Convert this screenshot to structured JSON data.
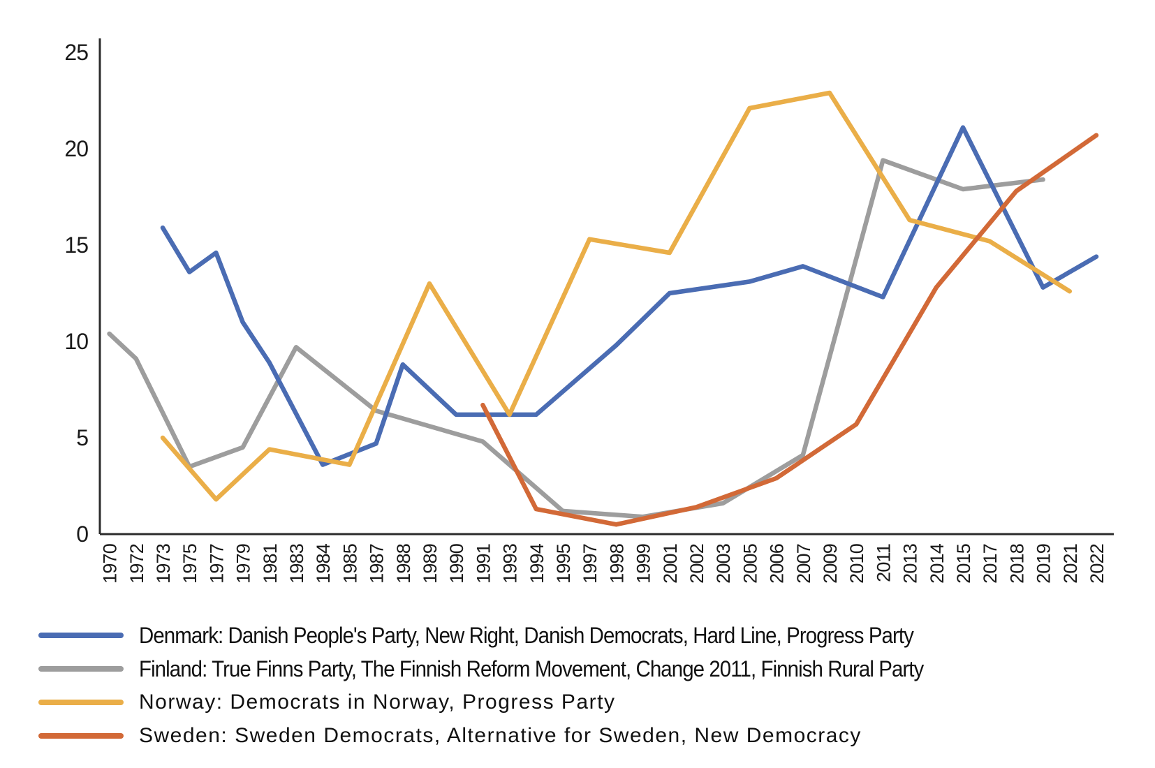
{
  "chart_data": {
    "type": "line",
    "title": "",
    "xlabel": "",
    "ylabel": "",
    "ylim": [
      0,
      25
    ],
    "yticks": [
      0,
      5,
      10,
      15,
      20,
      25
    ],
    "grid": false,
    "legend_position": "bottom",
    "categories": [
      "1970",
      "1972",
      "1973",
      "1975",
      "1977",
      "1979",
      "1981",
      "1983",
      "1984",
      "1985",
      "1987",
      "1988",
      "1989",
      "1990",
      "1991",
      "1993",
      "1994",
      "1995",
      "1997",
      "1998",
      "1999",
      "2001",
      "2002",
      "2003",
      "2005",
      "2006",
      "2007",
      "2009",
      "2010",
      "2011",
      "2013",
      "2014",
      "2015",
      "2017",
      "2018",
      "2019",
      "2021",
      "2022"
    ],
    "series": [
      {
        "name": "Finland",
        "legend": "Finland: True Finns Party, The Finnish Reform Movement, Change 2011, Finnish Rural Party",
        "color": "#9D9D9D",
        "points": [
          [
            1970,
            10.4
          ],
          [
            1972,
            9.1
          ],
          [
            1975,
            3.5
          ],
          [
            1979,
            4.5
          ],
          [
            1983,
            9.7
          ],
          [
            1987,
            6.4
          ],
          [
            1991,
            4.8
          ],
          [
            1995,
            1.2
          ],
          [
            1999,
            0.9
          ],
          [
            2003,
            1.6
          ],
          [
            2007,
            4.1
          ],
          [
            2011,
            19.4
          ],
          [
            2015,
            17.9
          ],
          [
            2019,
            18.4
          ]
        ]
      },
      {
        "name": "Denmark",
        "legend": "Denmark: Danish People's Party, New Right, Danish Democrats, Hard Line, Progress Party",
        "color": "#4A6CB3",
        "points": [
          [
            1973,
            15.9
          ],
          [
            1975,
            13.6
          ],
          [
            1977,
            14.6
          ],
          [
            1979,
            11.0
          ],
          [
            1981,
            8.9
          ],
          [
            1984,
            3.6
          ],
          [
            1987,
            4.7
          ],
          [
            1988,
            8.8
          ],
          [
            1990,
            6.2
          ],
          [
            1994,
            6.2
          ],
          [
            1998,
            9.8
          ],
          [
            2001,
            12.5
          ],
          [
            2005,
            13.1
          ],
          [
            2007,
            13.9
          ],
          [
            2011,
            12.3
          ],
          [
            2015,
            21.1
          ],
          [
            2019,
            12.8
          ],
          [
            2022,
            14.4
          ]
        ]
      },
      {
        "name": "Norway",
        "legend": "Norway: Democrats in Norway, Progress Party",
        "color": "#EAAE48",
        "points": [
          [
            1973,
            5.0
          ],
          [
            1977,
            1.8
          ],
          [
            1981,
            4.4
          ],
          [
            1985,
            3.6
          ],
          [
            1989,
            13.0
          ],
          [
            1993,
            6.2
          ],
          [
            1997,
            15.3
          ],
          [
            2001,
            14.6
          ],
          [
            2005,
            22.1
          ],
          [
            2009,
            22.9
          ],
          [
            2013,
            16.3
          ],
          [
            2017,
            15.2
          ],
          [
            2021,
            12.6
          ]
        ]
      },
      {
        "name": "Sweden",
        "legend": "Sweden: Sweden Democrats, Alternative for Sweden, New Democracy",
        "color": "#D26937",
        "points": [
          [
            1991,
            6.7
          ],
          [
            1994,
            1.3
          ],
          [
            1998,
            0.5
          ],
          [
            2002,
            1.4
          ],
          [
            2006,
            2.9
          ],
          [
            2010,
            5.7
          ],
          [
            2014,
            12.8
          ],
          [
            2018,
            17.8
          ],
          [
            2022,
            20.7
          ]
        ]
      }
    ],
    "legend_order": [
      "Denmark",
      "Finland",
      "Norway",
      "Sweden"
    ]
  },
  "axis": {
    "color": "#2B2B2B"
  }
}
